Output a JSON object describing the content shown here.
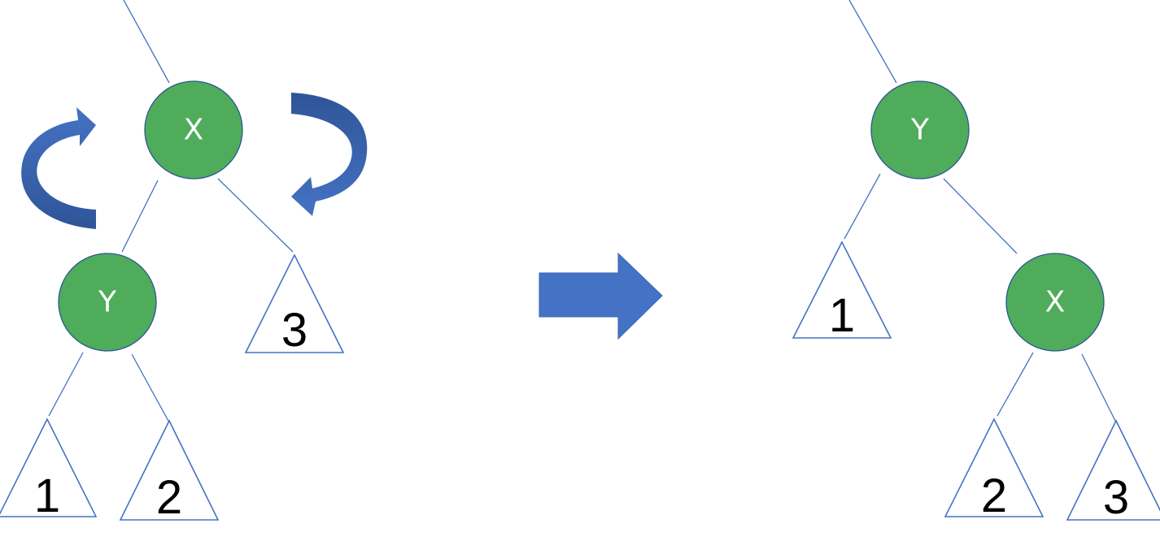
{
  "colors": {
    "node_fill": "#4eac5b",
    "node_stroke": "#2f5597",
    "edge": "#4472c4",
    "arrow_light": "#4472c4",
    "arrow_dark": "#2f5597"
  },
  "before": {
    "parent_node": "X",
    "child_node": "Y",
    "subtrees": [
      "1",
      "2",
      "3"
    ]
  },
  "after": {
    "parent_node": "Y",
    "child_node": "X",
    "subtrees": [
      "1",
      "2",
      "3"
    ]
  },
  "icons": {
    "rotate_left": "curved-arrow-counterclockwise-icon",
    "rotate_right": "curved-arrow-clockwise-icon",
    "transform": "block-arrow-right-icon"
  }
}
